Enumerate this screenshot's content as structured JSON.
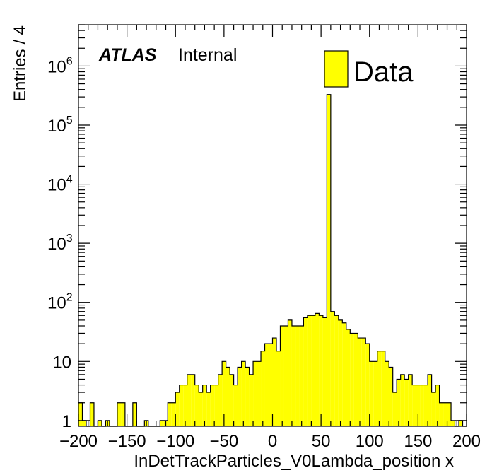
{
  "chart_data": {
    "type": "bar",
    "style": "histogram",
    "xlabel": "InDetTrackParticles_V0Lambda_position x",
    "ylabel": "Entries / 4",
    "xlim": [
      -200,
      200
    ],
    "ylim": [
      0.8,
      5000000
    ],
    "yscale": "log",
    "bin_width": 4,
    "x_ticks": [
      -200,
      -150,
      -100,
      -50,
      0,
      50,
      100,
      150,
      200
    ],
    "x_tick_labels": [
      "−200",
      "−150",
      "−100",
      "−50",
      "0",
      "50",
      "100",
      "150",
      "200"
    ],
    "y_ticks": [
      {
        "base": "1",
        "exp": ""
      },
      {
        "base": "10",
        "exp": ""
      },
      {
        "base": "10",
        "exp": "2"
      },
      {
        "base": "10",
        "exp": "3"
      },
      {
        "base": "10",
        "exp": "4"
      },
      {
        "base": "10",
        "exp": "5"
      },
      {
        "base": "10",
        "exp": "6"
      }
    ],
    "fill_color": "#ffff00",
    "line_color": "#000000",
    "legend": {
      "label": "Data",
      "position": "top-right"
    },
    "series": [
      {
        "name": "Data",
        "bin_low_edges": [
          -200,
          -196,
          -192,
          -188,
          -184,
          -180,
          -176,
          -172,
          -168,
          -164,
          -160,
          -156,
          -152,
          -148,
          -144,
          -140,
          -136,
          -132,
          -128,
          -124,
          -120,
          -116,
          -112,
          -108,
          -104,
          -100,
          -96,
          -92,
          -88,
          -84,
          -80,
          -76,
          -72,
          -68,
          -64,
          -60,
          -56,
          -52,
          -48,
          -44,
          -40,
          -36,
          -32,
          -28,
          -24,
          -20,
          -16,
          -12,
          -8,
          -4,
          0,
          4,
          8,
          12,
          16,
          20,
          24,
          28,
          32,
          36,
          40,
          44,
          48,
          52,
          56,
          60,
          64,
          68,
          72,
          76,
          80,
          84,
          88,
          92,
          96,
          100,
          104,
          108,
          112,
          116,
          120,
          124,
          128,
          132,
          136,
          140,
          144,
          148,
          152,
          156,
          160,
          164,
          168,
          172,
          176,
          180,
          184,
          188,
          192,
          196
        ],
        "values": [
          2,
          1,
          0,
          2,
          0,
          1,
          0,
          1,
          0,
          0,
          2,
          2,
          0,
          0,
          2,
          0,
          0,
          1,
          0,
          0,
          0,
          1,
          1,
          2,
          2,
          3,
          4,
          4,
          6,
          6,
          4,
          3,
          4,
          3,
          4,
          4,
          6,
          10,
          8,
          6,
          4,
          8,
          10,
          8,
          6,
          10,
          10,
          15,
          20,
          20,
          25,
          15,
          40,
          40,
          50,
          40,
          40,
          40,
          55,
          60,
          60,
          65,
          60,
          55,
          330000,
          70,
          60,
          50,
          45,
          35,
          30,
          30,
          25,
          25,
          20,
          10,
          10,
          15,
          15,
          10,
          8,
          3,
          5,
          6,
          5,
          6,
          4,
          4,
          4,
          4,
          6,
          3,
          4,
          2,
          2,
          2,
          1,
          0,
          1,
          0
        ],
        "counts": [
          2,
          1,
          0,
          2,
          0,
          1,
          0,
          1,
          0,
          0,
          2,
          2,
          0,
          0,
          2,
          0,
          0,
          1,
          0,
          0,
          0,
          1,
          1,
          2,
          2,
          3,
          4,
          4,
          6,
          6,
          4,
          3,
          4,
          3,
          4,
          4,
          6,
          10,
          8,
          6,
          4,
          8,
          10,
          8,
          6,
          10,
          10,
          15,
          20,
          20,
          25,
          15,
          40,
          40,
          50,
          40,
          40,
          40,
          55,
          60,
          60,
          65,
          60,
          55,
          330000,
          70,
          60,
          50,
          45,
          35,
          30,
          30,
          25,
          25,
          20,
          10,
          10,
          15,
          15,
          10,
          8,
          3,
          5,
          6,
          5,
          6,
          4,
          4,
          4,
          4,
          6,
          3,
          4,
          2,
          2,
          2,
          1,
          0,
          1,
          0
        ]
      }
    ]
  },
  "annotations": {
    "atlas": "ATLAS",
    "internal": "Internal"
  }
}
